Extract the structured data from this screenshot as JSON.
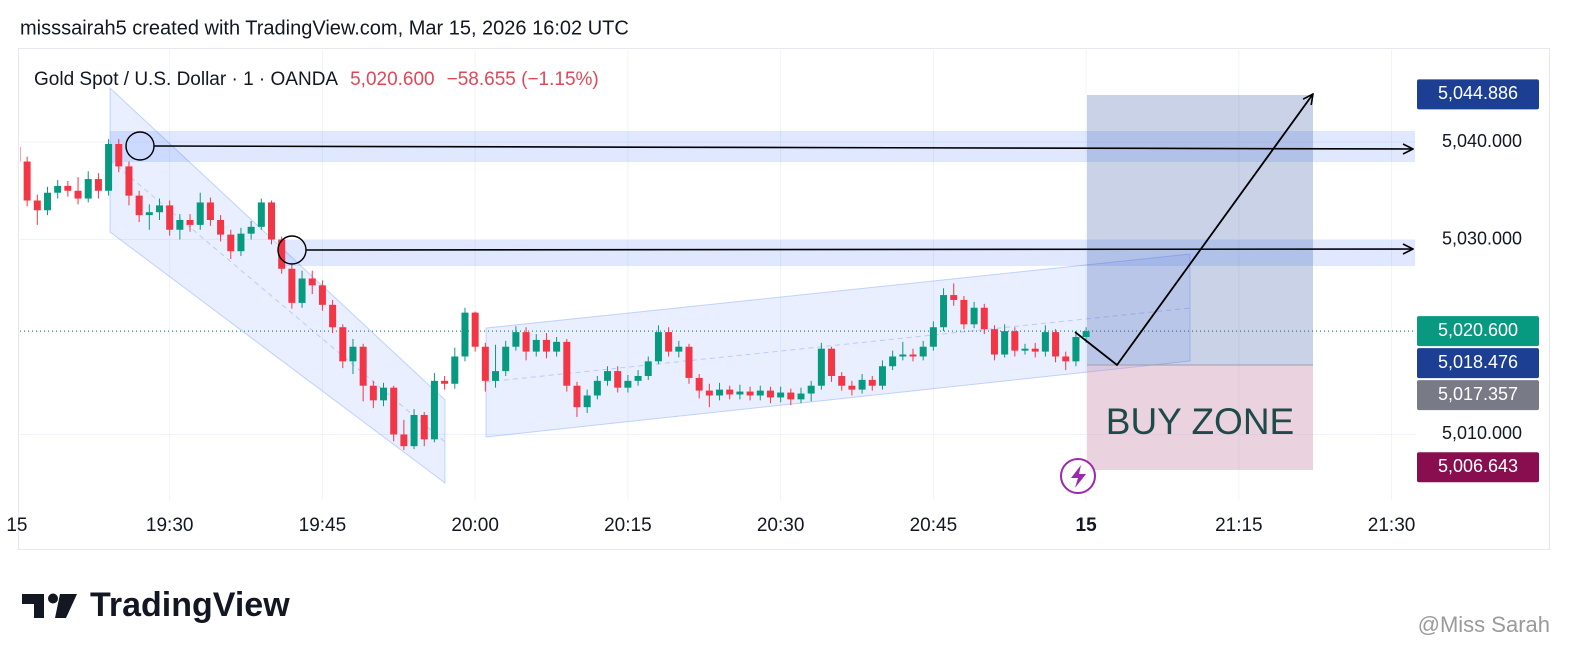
{
  "header": {
    "text": "misssairah5 created with TradingView.com, Mar 15, 2026 16:02 UTC"
  },
  "chart_data": {
    "type": "candlestick",
    "title": "Gold Spot / U.S. Dollar · 1 · OANDA",
    "change": "−58.655 (−1.15%)",
    "up_color": "#089981",
    "down_color": "#f23645",
    "x": [
      1155,
      1156,
      1157,
      1158,
      1159,
      1160,
      1161,
      1162,
      1163,
      1164,
      1165,
      1166,
      1167,
      1168,
      1169,
      1170,
      1171,
      1172,
      1173,
      1174,
      1175,
      1176,
      1177,
      1178,
      1179,
      1180,
      1181,
      1182,
      1183,
      1184,
      1185,
      1186,
      1187,
      1188,
      1189,
      1190,
      1191,
      1192,
      1193,
      1194,
      1195,
      1196,
      1197,
      1198,
      1199,
      1200,
      1201,
      1202,
      1203,
      1204,
      1205,
      1206,
      1207,
      1208,
      1209,
      1210,
      1211,
      1212,
      1213,
      1214,
      1215,
      1216,
      1217,
      1218,
      1219,
      1220,
      1221,
      1222,
      1223,
      1224,
      1225,
      1226,
      1227,
      1228,
      1229,
      1230,
      1231,
      1232,
      1233,
      1234,
      1235,
      1236,
      1237,
      1238,
      1239,
      1240,
      1241,
      1242,
      1243,
      1244,
      1245,
      1246,
      1247,
      1248,
      1249,
      1250,
      1251,
      1252,
      1253,
      1254,
      1255,
      1256,
      1257,
      1258,
      1259,
      1260
    ],
    "open": [
      5039.5,
      5038.0,
      5034.0,
      5033.0,
      5034.8,
      5035.5,
      5035.0,
      5034.2,
      5036.2,
      5035.0,
      5039.8,
      5037.5,
      5034.5,
      5032.5,
      5032.8,
      5033.5,
      5031.0,
      5032.0,
      5031.5,
      5033.8,
      5032.0,
      5030.5,
      5028.8,
      5030.6,
      5031.3,
      5033.8,
      5030.0,
      5027.0,
      5023.5,
      5026.0,
      5025.3,
      5023.3,
      5021.0,
      5017.5,
      5019.0,
      5015.0,
      5013.5,
      5014.8,
      5010.0,
      5008.8,
      5012.0,
      5009.5,
      5015.5,
      5015.2,
      5018.0,
      5022.5,
      5019.0,
      5015.5,
      5016.5,
      5019.0,
      5020.5,
      5018.5,
      5019.7,
      5018.5,
      5019.5,
      5015.0,
      5012.8,
      5014.0,
      5015.5,
      5016.5,
      5014.8,
      5015.5,
      5016.0,
      5017.5,
      5020.5,
      5018.5,
      5019.0,
      5015.8,
      5014.5,
      5014.0,
      5014.6,
      5014.1,
      5014.4,
      5014.0,
      5014.5,
      5013.8,
      5014.3,
      5013.6,
      5014.2,
      5015.0,
      5018.8,
      5016.0,
      5015.0,
      5014.6,
      5015.6,
      5015.0,
      5017.0,
      5018.0,
      5018.2,
      5018.0,
      5019.0,
      5021.0,
      5024.3,
      5023.8,
      5021.3,
      5023.0,
      5020.8,
      5018.2,
      5020.6,
      5018.6,
      5018.8,
      5018.5,
      5020.5,
      5018.0,
      5017.5,
      5020.0
    ],
    "high": [
      5040.0,
      5038.5,
      5034.6,
      5035.4,
      5036.1,
      5036.0,
      5036.4,
      5037.0,
      5036.8,
      5040.3,
      5040.3,
      5038.0,
      5035.0,
      5033.6,
      5034.2,
      5034.0,
      5032.6,
      5032.6,
      5034.8,
      5034.3,
      5032.5,
      5031.0,
      5031.2,
      5031.9,
      5034.2,
      5034.0,
      5030.3,
      5027.4,
      5026.8,
      5026.8,
      5025.8,
      5023.8,
      5021.3,
      5019.8,
      5019.3,
      5015.5,
      5015.3,
      5015.0,
      5011.5,
      5012.6,
      5012.3,
      5016.3,
      5016.0,
      5018.9,
      5023.0,
      5022.6,
      5019.4,
      5019.2,
      5019.6,
      5021.1,
      5021.0,
      5020.3,
      5020.4,
      5020.0,
      5019.8,
      5015.4,
      5014.6,
      5016.0,
      5017.0,
      5017.0,
      5016.1,
      5016.6,
      5018.0,
      5021.2,
      5021.0,
      5019.6,
      5019.3,
      5016.2,
      5015.2,
      5015.3,
      5015.0,
      5015.1,
      5014.9,
      5015.0,
      5014.9,
      5014.9,
      5014.7,
      5014.8,
      5015.5,
      5019.4,
      5019.0,
      5016.4,
      5015.5,
      5016.2,
      5016.0,
      5017.6,
      5018.6,
      5019.5,
      5018.8,
      5019.6,
      5021.6,
      5025.0,
      5025.5,
      5024.2,
      5023.6,
      5023.4,
      5021.2,
      5021.3,
      5021.0,
      5019.3,
      5019.4,
      5021.2,
      5020.8,
      5018.5,
      5020.6,
      5021.0
    ],
    "low": [
      5037.2,
      5033.4,
      5031.5,
      5032.5,
      5034.2,
      5034.4,
      5033.6,
      5033.8,
      5034.2,
      5034.5,
      5036.9,
      5033.5,
      5031.8,
      5031.0,
      5032.0,
      5030.4,
      5030.0,
      5030.8,
      5031.0,
      5031.4,
      5029.8,
      5028.0,
      5028.3,
      5030.0,
      5031.0,
      5029.5,
      5026.5,
      5022.9,
      5023.0,
      5024.4,
      5022.7,
      5020.4,
      5016.8,
      5016.2,
      5013.4,
      5012.7,
      5012.9,
      5009.3,
      5008.4,
      5008.5,
      5008.8,
      5009.2,
      5014.6,
      5014.7,
      5017.5,
      5018.5,
      5014.4,
      5014.8,
      5016.0,
      5018.6,
      5017.6,
      5018.0,
      5017.8,
      5018.0,
      5014.4,
      5011.8,
      5012.2,
      5013.6,
      5015.0,
      5014.3,
      5014.3,
      5015.0,
      5015.6,
      5017.2,
      5018.0,
      5017.9,
      5015.2,
      5013.7,
      5012.8,
      5013.5,
      5013.6,
      5013.6,
      5013.5,
      5013.5,
      5013.2,
      5013.3,
      5013.0,
      5013.2,
      5013.4,
      5014.6,
      5015.4,
      5014.5,
      5014.0,
      5014.2,
      5014.5,
      5014.6,
      5016.6,
      5017.6,
      5017.5,
      5017.6,
      5018.6,
      5020.6,
      5023.2,
      5020.8,
      5020.9,
      5020.3,
      5017.6,
      5017.9,
      5018.0,
      5018.2,
      5017.9,
      5018.0,
      5017.4,
      5016.6,
      5017.0,
      5019.4
    ],
    "close": [
      5038.0,
      5034.0,
      5033.0,
      5034.8,
      5035.5,
      5035.0,
      5034.2,
      5036.2,
      5035.0,
      5039.8,
      5037.5,
      5034.5,
      5032.5,
      5032.8,
      5033.5,
      5031.0,
      5032.0,
      5031.5,
      5033.8,
      5032.0,
      5030.5,
      5028.8,
      5030.6,
      5031.3,
      5033.8,
      5030.0,
      5027.0,
      5023.5,
      5026.0,
      5025.3,
      5023.3,
      5021.0,
      5017.5,
      5019.0,
      5015.0,
      5013.5,
      5014.8,
      5010.0,
      5008.8,
      5012.0,
      5009.5,
      5015.5,
      5015.2,
      5018.0,
      5022.5,
      5019.0,
      5015.5,
      5016.5,
      5019.0,
      5020.5,
      5018.5,
      5019.7,
      5018.5,
      5019.5,
      5015.0,
      5012.8,
      5014.0,
      5015.5,
      5016.5,
      5014.8,
      5015.5,
      5016.0,
      5017.5,
      5020.5,
      5018.5,
      5019.0,
      5015.8,
      5014.5,
      5014.0,
      5014.6,
      5014.1,
      5014.4,
      5014.0,
      5014.5,
      5013.8,
      5014.3,
      5013.6,
      5014.2,
      5015.0,
      5018.8,
      5016.0,
      5015.0,
      5014.6,
      5015.6,
      5015.0,
      5017.0,
      5018.0,
      5018.2,
      5018.0,
      5019.0,
      5021.0,
      5024.3,
      5023.8,
      5021.3,
      5023.0,
      5020.8,
      5018.2,
      5020.6,
      5018.6,
      5018.8,
      5018.5,
      5020.5,
      5018.0,
      5017.5,
      5020.0,
      5020.6
    ],
    "xlim": [
      1155.3,
      1292.3
    ],
    "xticks": [
      {
        "value": 1155,
        "label": "15"
      },
      {
        "value": 1170,
        "label": "19:30"
      },
      {
        "value": 1185,
        "label": "19:45"
      },
      {
        "value": 1200,
        "label": "20:00"
      },
      {
        "value": 1215,
        "label": "20:15"
      },
      {
        "value": 1230,
        "label": "20:30"
      },
      {
        "value": 1245,
        "label": "20:45"
      },
      {
        "value": 1260,
        "label": "15",
        "bold": true
      },
      {
        "value": 1275,
        "label": "21:15"
      },
      {
        "value": 1290,
        "label": "21:30"
      }
    ],
    "ylim": [
      5003.79,
      5049.44
    ],
    "yticks": [
      {
        "value": 5010,
        "label": "5,010.000"
      },
      {
        "value": 5030,
        "label": "5,030.000"
      },
      {
        "value": 5040,
        "label": "5,040.000"
      }
    ],
    "grid": true,
    "last_price_line": {
      "value": 5020.6,
      "color": "#089981"
    },
    "price_labels": [
      {
        "value": 5044.886,
        "label": "5,044.886",
        "color": "#1c3f94"
      },
      {
        "value": 5020.6,
        "label": "5,020.600",
        "color": "#089981"
      },
      {
        "value": 5018.476,
        "label": "5,018.476",
        "color": "#1c3f94"
      },
      {
        "value": 5017.357,
        "label": "5,017.357",
        "color": "#787b86"
      },
      {
        "value": 5006.643,
        "label": "5,006.643",
        "color": "#880e4f"
      }
    ],
    "annotation": "BUY ZONE"
  },
  "footer": {
    "logo": "TradingView",
    "watermark": "@Miss Sarah"
  }
}
